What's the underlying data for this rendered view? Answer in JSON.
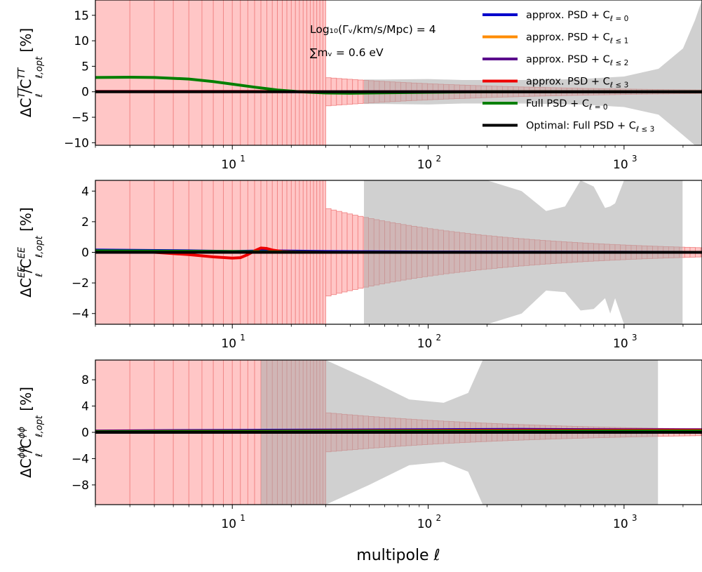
{
  "figure": {
    "xlabel": "multipole ℓ",
    "annotation_line1": "Log₁₀(Γᵥ/km/s/Mpc) = 4",
    "annotation_line2": "∑mᵥ = 0.6 eV"
  },
  "legend": [
    {
      "label": "approx. PSD + C",
      "sub": "ℓ = 0",
      "color": "#0000cc"
    },
    {
      "label": "approx. PSD + C",
      "sub": "ℓ ≤ 1",
      "color": "#ff8c00"
    },
    {
      "label": "approx. PSD + C",
      "sub": "ℓ ≤ 2",
      "color": "#5a0a8c"
    },
    {
      "label": "approx. PSD + C",
      "sub": "ℓ ≤ 3",
      "color": "#ee0000"
    },
    {
      "label": "Full PSD + C",
      "sub": "ℓ = 0",
      "color": "#007f00"
    },
    {
      "label": "Optimal: Full PSD + C",
      "sub": "ℓ ≤ 3",
      "color": "#000000"
    }
  ],
  "chart_data": [
    {
      "type": "line",
      "panel": "TT",
      "ylabel_main": "ΔC",
      "ylabel_sup": "TT",
      "ylabel_sub": "ℓ",
      "ylabel_den": "/C",
      "ylabel_den_sup": "TT",
      "ylabel_den_sub": "ℓ,opt",
      "ylabel_unit": "[%]",
      "xscale": "log",
      "xlim": [
        2,
        2500
      ],
      "ylim": [
        -10.5,
        18
      ],
      "yticks": [
        -10,
        -5,
        0,
        5,
        10,
        15
      ],
      "ytick_labels": [
        "−10",
        "−5",
        "0",
        "5",
        "10",
        "15"
      ],
      "xticks": [
        10,
        100,
        1000
      ],
      "xtick_labels": [
        "10",
        "10",
        "10"
      ],
      "xtick_exponents": [
        "1",
        "2",
        "3"
      ],
      "series": [
        {
          "name": "approx. PSD + C_ℓ=0",
          "color": "#0000cc",
          "x": [
            2,
            10,
            20,
            30,
            100,
            1000,
            2500
          ],
          "y": [
            0.05,
            0.05,
            0.02,
            0,
            0,
            0,
            0
          ]
        },
        {
          "name": "approx. PSD + C_ℓ≤3",
          "color": "#ee0000",
          "x": [
            2,
            10,
            20,
            30,
            100,
            1000,
            2500
          ],
          "y": [
            0.05,
            0.05,
            0.05,
            0,
            0,
            0,
            0
          ]
        },
        {
          "name": "Full PSD + C_ℓ=0",
          "color": "#007f00",
          "x": [
            2,
            3,
            4,
            6,
            8,
            10,
            13,
            17,
            22,
            30,
            40,
            60,
            100,
            200,
            500,
            1000,
            2500
          ],
          "y": [
            2.8,
            2.85,
            2.8,
            2.5,
            2.0,
            1.5,
            0.9,
            0.35,
            0,
            -0.25,
            -0.3,
            -0.2,
            -0.1,
            0,
            0,
            0,
            0
          ]
        },
        {
          "name": "Optimal: Full PSD + C_ℓ≤3",
          "color": "#000000",
          "x": [
            2,
            2500
          ],
          "y": [
            0,
            0
          ]
        }
      ],
      "gray_band": {
        "x": [
          47,
          60,
          100,
          150,
          300,
          600,
          1000,
          1500,
          2000,
          2300,
          2500
        ],
        "upper": [
          2.4,
          2.4,
          2.5,
          2.3,
          2.3,
          2.5,
          3.0,
          4.5,
          8.5,
          14,
          18
        ],
        "lower": [
          -2.4,
          -2.4,
          -2.5,
          -2.3,
          -2.3,
          -2.5,
          -3.0,
          -4.5,
          -8.5,
          -10.5,
          -10.5
        ]
      },
      "red_band": {
        "lowl_edge": 30,
        "lowl_halfwidth": 30,
        "highl_start_halfwidth": 2.8,
        "highl_end_halfwidth": 0.35
      }
    },
    {
      "type": "line",
      "panel": "EE",
      "ylabel_main": "ΔC",
      "ylabel_sup": "EE",
      "ylabel_sub": "ℓ",
      "ylabel_den": "/C",
      "ylabel_den_sup": "EE",
      "ylabel_den_sub": "ℓ,opt",
      "ylabel_unit": "[%]",
      "xscale": "log",
      "xlim": [
        2,
        2500
      ],
      "ylim": [
        -4.7,
        4.7
      ],
      "yticks": [
        -4,
        -2,
        0,
        2,
        4
      ],
      "ytick_labels": [
        "−4",
        "−2",
        "0",
        "2",
        "4"
      ],
      "xticks": [
        10,
        100,
        1000
      ],
      "xtick_labels": [
        "10",
        "10",
        "10"
      ],
      "xtick_exponents": [
        "1",
        "2",
        "3"
      ],
      "series": [
        {
          "name": "approx. PSD + C_ℓ=0",
          "color": "#0000cc",
          "x": [
            2,
            6,
            10,
            15,
            30,
            100,
            2500
          ],
          "y": [
            0.15,
            0.1,
            0.05,
            0.1,
            0.05,
            0.02,
            0
          ]
        },
        {
          "name": "approx. PSD + C_ℓ≤3",
          "color": "#ee0000",
          "x": [
            2,
            4,
            6,
            8,
            10,
            11,
            12,
            13,
            14,
            15,
            16,
            18,
            22,
            30,
            100,
            2500
          ],
          "y": [
            0.1,
            0.0,
            -0.15,
            -0.3,
            -0.38,
            -0.35,
            -0.15,
            0.1,
            0.28,
            0.25,
            0.15,
            0.05,
            0.02,
            0,
            0,
            0
          ]
        },
        {
          "name": "Full PSD + C_ℓ=0",
          "color": "#007f00",
          "x": [
            2,
            10,
            30,
            100,
            2500
          ],
          "y": [
            0.1,
            0.05,
            0,
            0,
            0
          ]
        },
        {
          "name": "Optimal: Full PSD + C_ℓ≤3",
          "color": "#000000",
          "x": [
            2,
            2500
          ],
          "y": [
            0,
            0
          ]
        }
      ],
      "gray_band": {
        "x": [
          47,
          200,
          300,
          400,
          500,
          600,
          700,
          800,
          850,
          900,
          1000,
          1200,
          1500,
          1990
        ],
        "upper": [
          4.7,
          4.7,
          4.0,
          2.7,
          3.0,
          4.7,
          4.3,
          2.9,
          3.0,
          3.2,
          4.7,
          4.7,
          4.7,
          4.7
        ],
        "lower": [
          -4.7,
          -4.7,
          -4.0,
          -2.5,
          -2.6,
          -3.8,
          -3.7,
          -3.0,
          -4.0,
          -3.0,
          -4.7,
          -4.7,
          -4.7,
          -4.7
        ]
      },
      "red_band": {
        "lowl_edge": 30,
        "lowl_halfwidth": 4.7,
        "highl_start_halfwidth": 2.9,
        "highl_end_halfwidth": 0.3
      }
    },
    {
      "type": "line",
      "panel": "phiphi",
      "ylabel_main": "ΔC",
      "ylabel_sup": "ϕϕ",
      "ylabel_sub": "ℓ",
      "ylabel_den": "/C",
      "ylabel_den_sup": "ϕϕ",
      "ylabel_den_sub": "ℓ,opt",
      "ylabel_unit": "[%]",
      "xscale": "log",
      "xlim": [
        2,
        2500
      ],
      "ylim": [
        -11,
        11
      ],
      "yticks": [
        -8,
        -4,
        0,
        4,
        8
      ],
      "ytick_labels": [
        "−8",
        "−4",
        "0",
        "4",
        "8"
      ],
      "xticks": [
        10,
        100,
        1000
      ],
      "xtick_labels": [
        "10",
        "10",
        "10"
      ],
      "xtick_exponents": [
        "1",
        "2",
        "3"
      ],
      "series": [
        {
          "name": "approx. PSD + C_ℓ=0",
          "color": "#0000cc",
          "x": [
            2,
            10,
            30,
            100,
            300,
            1000,
            2500
          ],
          "y": [
            0.2,
            0.3,
            0.35,
            0.4,
            0.45,
            0.4,
            0.4
          ]
        },
        {
          "name": "approx. PSD + C_ℓ≤3",
          "color": "#ee0000",
          "x": [
            2,
            10,
            30,
            100,
            300,
            1000,
            2500
          ],
          "y": [
            0.15,
            0.2,
            0.25,
            0.3,
            0.35,
            0.35,
            0.35
          ]
        },
        {
          "name": "Full PSD + C_ℓ=0",
          "color": "#007f00",
          "x": [
            2,
            10,
            100,
            2500
          ],
          "y": [
            0.1,
            0.15,
            0.2,
            0.2
          ]
        },
        {
          "name": "Optimal: Full PSD + C_ℓ≤3",
          "color": "#000000",
          "x": [
            2,
            2500
          ],
          "y": [
            0,
            0
          ]
        }
      ],
      "gray_band": {
        "x": [
          14,
          30,
          50,
          80,
          120,
          160,
          190,
          300,
          1490
        ],
        "upper": [
          11,
          11,
          8,
          5,
          4.5,
          6,
          11,
          11,
          11
        ],
        "lower": [
          -11,
          -11,
          -8,
          -5,
          -4.5,
          -6,
          -11,
          -11,
          -11
        ]
      },
      "red_band": {
        "lowl_edge": 30,
        "lowl_halfwidth": 11,
        "highl_start_halfwidth": 3.0,
        "highl_end_halfwidth": 0.5
      }
    }
  ]
}
